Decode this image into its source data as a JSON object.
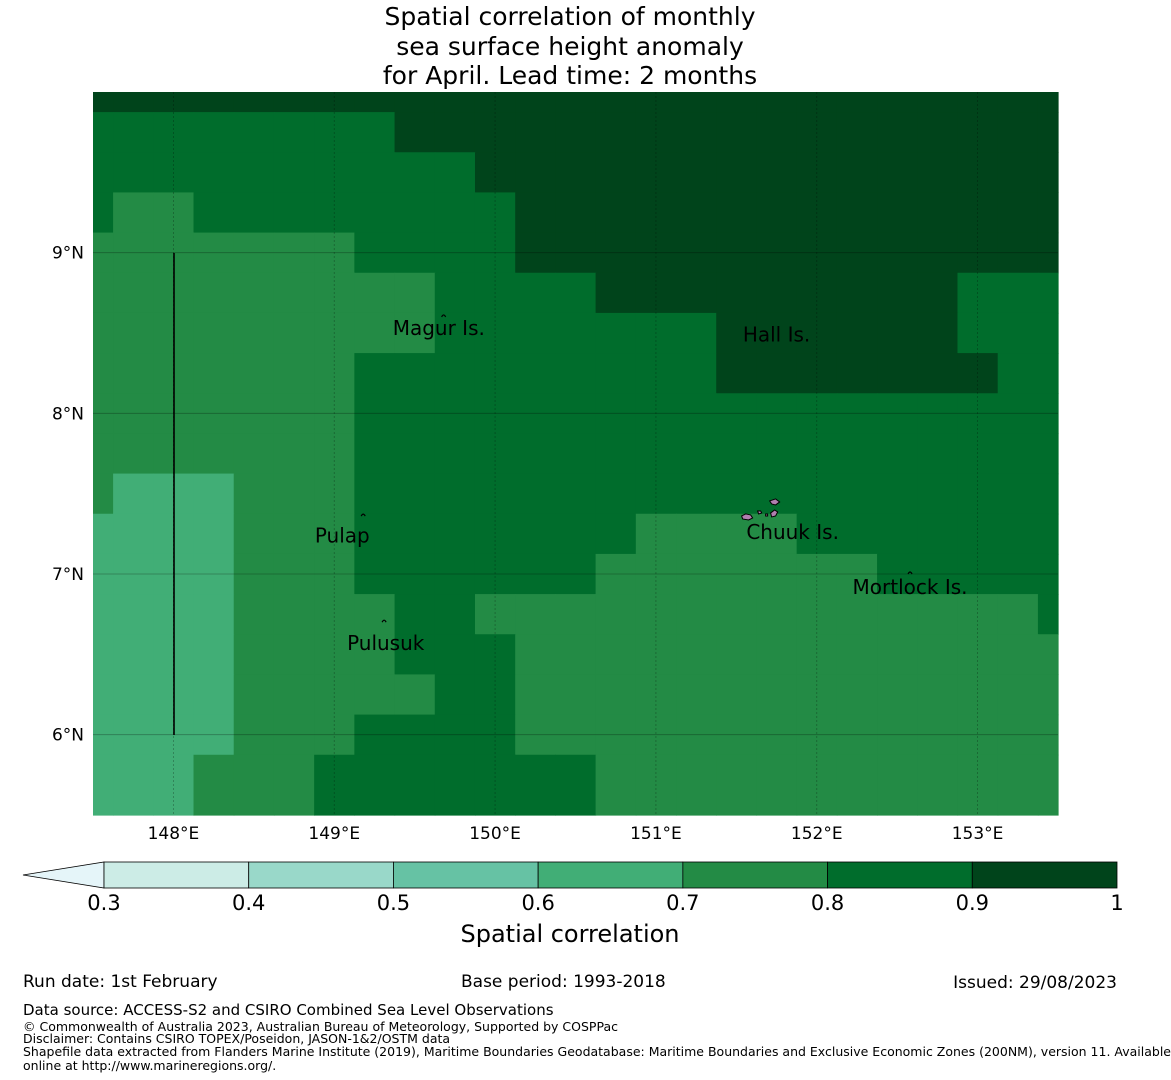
{
  "title": {
    "line1": "Spatial correlation of monthly",
    "line2": "sea surface height anomaly",
    "line3": "for April. Lead time: 2 months"
  },
  "map": {
    "longitude_labels": [
      "148°E",
      "149°E",
      "150°E",
      "151°E",
      "152°E",
      "153°E"
    ],
    "latitude_labels": [
      "9°N",
      "8°N",
      "7°N",
      "6°N"
    ],
    "extent": {
      "lon_min": 147.5,
      "lon_max": 153.5,
      "lat_min": 5.5,
      "lat_max": 10.0
    },
    "islands": [
      {
        "name": "Magur Is.",
        "lon": 149.65,
        "lat": 8.53
      },
      {
        "name": "Hall Is.",
        "lon": 151.75,
        "lat": 8.49
      },
      {
        "name": "Pulap",
        "lon": 149.05,
        "lat": 7.24
      },
      {
        "name": "Chuuk Is.",
        "lon": 151.85,
        "lat": 7.26
      },
      {
        "name": "Mortlock Is.",
        "lon": 152.58,
        "lat": 6.92
      },
      {
        "name": "Pulusuk",
        "lon": 149.32,
        "lat": 6.57
      }
    ],
    "correlation_grid": {
      "lon_edges": [
        147.5,
        147.625,
        147.875,
        148.125,
        148.375,
        148.625,
        148.875,
        149.125,
        149.375,
        149.625,
        149.875,
        150.125,
        150.375,
        150.625,
        150.875,
        151.125,
        151.375,
        151.625,
        151.875,
        152.125,
        152.375,
        152.625,
        152.875,
        153.125,
        153.375,
        153.5
      ],
      "lat_top": 10.0,
      "lat_bottom": 5.5,
      "row_spacing_deg": 0.25,
      "rows": [
        "8888888888888888888888888",
        "7777777788888888888888888",
        "7777777777888888888888888",
        "7667777777788888888888888",
        "6666666777788888888888888",
        "6666666667777888888888777",
        "6666666667777777888888777",
        "6666666777777777888888877",
        "6666666777777777777777777",
        "6666666777777777777777777",
        "6555666777777777777777777",
        "5555666777777766667777777",
        "5555666777777666666677777",
        "5555666677666666666666667",
        "5555666677766666666666666",
        "5555666667766666666666666",
        "5555666777766666666666666",
        "5556667777777666666666666"
      ]
    }
  },
  "colorbar": {
    "title": "Spatial correlation",
    "tick_labels": [
      "0.3",
      "0.4",
      "0.5",
      "0.6",
      "0.7",
      "0.8",
      "0.9",
      "1"
    ],
    "bins": [
      {
        "range": "<0.3",
        "color": "#e5f5f9"
      },
      {
        "range": "0.3-0.4",
        "color": "#ccece6"
      },
      {
        "range": "0.4-0.5",
        "color": "#99d8c9"
      },
      {
        "range": "0.5-0.6",
        "color": "#66c2a4"
      },
      {
        "range": "0.6-0.7",
        "color": "#41ae76"
      },
      {
        "range": "0.7-0.8",
        "color": "#238b45"
      },
      {
        "range": "0.8-0.9",
        "color": "#006d2c"
      },
      {
        "range": "0.9-1",
        "color": "#00441b"
      }
    ]
  },
  "footer": {
    "run_date": "Run date: 1st February",
    "base_period": "Base period: 1993-2018",
    "issued": "Issued: 29/08/2023",
    "data_source": "Data source: ACCESS-S2 and CSIRO Combined Sea Level Observations",
    "copyright": "© Commonwealth of Australia 2023, Australian Bureau of Meteorology, Supported by COSPPac",
    "disclaimer": "Disclaimer: Contains CSIRO TOPEX/Poseidon, JASON-1&2/OSTM data",
    "shapefile_line1": "Shapefile data extracted from Flanders Marine Institute (2019), Maritime Boundaries Geodatabase: Maritime Boundaries and Exclusive Economic Zones (200NM), version 11. Available",
    "shapefile_line2": "online at http://www.marineregions.org/."
  }
}
